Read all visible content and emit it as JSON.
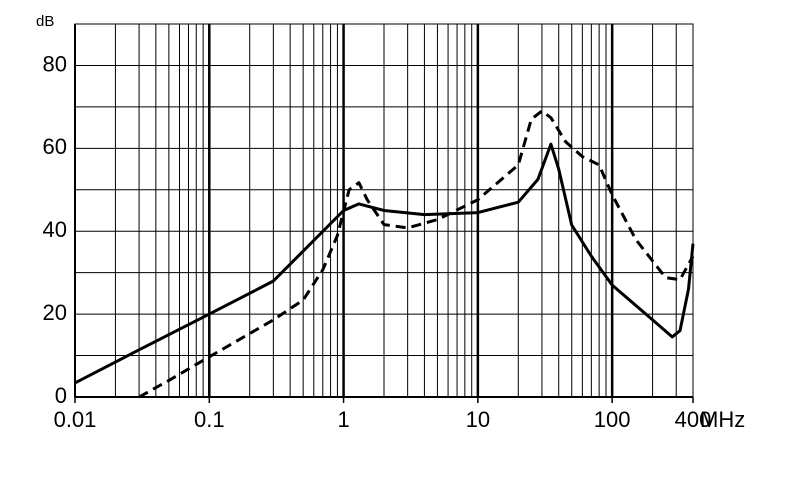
{
  "chart_data": {
    "type": "line",
    "y_label": "dB",
    "x_label": "MHz",
    "xscale": "log",
    "grid": true,
    "xlim": [
      0.01,
      400
    ],
    "ylim": [
      0,
      90
    ],
    "xticks": [
      0.01,
      0.1,
      1,
      10,
      100,
      400
    ],
    "xminor": [
      0.02,
      0.03,
      0.04,
      0.05,
      0.06,
      0.07,
      0.08,
      0.09,
      0.2,
      0.3,
      0.4,
      0.5,
      0.6,
      0.7,
      0.8,
      0.9,
      2,
      3,
      4,
      5,
      6,
      7,
      8,
      9,
      20,
      30,
      40,
      50,
      60,
      70,
      80,
      90,
      200,
      300
    ],
    "xmajor": [
      0.1,
      1,
      10,
      100
    ],
    "yticks": [
      0,
      20,
      40,
      60,
      80
    ],
    "yminor": [
      10,
      30,
      50,
      70
    ],
    "series": [
      {
        "color": "#000000",
        "dash": "solid",
        "x": [
          0.01,
          0.03,
          0.1,
          0.3,
          1,
          1.3,
          2,
          4,
          10,
          20,
          28,
          35,
          40,
          50,
          70,
          100,
          200,
          280,
          320,
          370,
          400
        ],
        "values": [
          3.4,
          11.4,
          20,
          28,
          45,
          46.6,
          45,
          44,
          44.5,
          47,
          52.5,
          61,
          55,
          41.5,
          34,
          27,
          18.6,
          14.5,
          16,
          26,
          37
        ]
      },
      {
        "color": "#000000",
        "dash": "dashed",
        "x": [
          0.03,
          0.05,
          0.1,
          0.3,
          0.5,
          0.7,
          0.9,
          1.1,
          1.3,
          1.5,
          2,
          3,
          5,
          10,
          20,
          25,
          30,
          35,
          45,
          60,
          80,
          100,
          150,
          250,
          320,
          400
        ],
        "values": [
          0,
          4,
          9.7,
          18.6,
          23.4,
          30.7,
          39,
          50,
          51.7,
          47.6,
          41.6,
          40.8,
          42.8,
          47.6,
          56,
          67,
          69,
          67.4,
          61.6,
          58,
          56,
          48.8,
          38,
          28.8,
          28.3,
          34
        ]
      }
    ]
  }
}
